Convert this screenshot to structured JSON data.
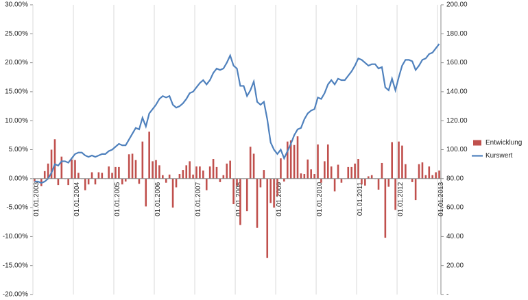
{
  "chart_data": {
    "type": "bar_line",
    "categories": [
      "01.01.2003",
      null,
      null,
      null,
      null,
      null,
      null,
      null,
      null,
      null,
      null,
      null,
      "01.01.2004",
      null,
      null,
      null,
      null,
      null,
      null,
      null,
      null,
      null,
      null,
      null,
      "01.01.2005",
      null,
      null,
      null,
      null,
      null,
      null,
      null,
      null,
      null,
      null,
      null,
      "01.01.2006",
      null,
      null,
      null,
      null,
      null,
      null,
      null,
      null,
      null,
      null,
      null,
      "01.01.2007",
      null,
      null,
      null,
      null,
      null,
      null,
      null,
      null,
      null,
      null,
      null,
      "01.01.2008",
      null,
      null,
      null,
      null,
      null,
      null,
      null,
      null,
      null,
      null,
      null,
      "01.01.2009",
      null,
      null,
      null,
      null,
      null,
      null,
      null,
      null,
      null,
      null,
      null,
      "01.01.2010",
      null,
      null,
      null,
      null,
      null,
      null,
      null,
      null,
      null,
      null,
      null,
      "01.01.2011",
      null,
      null,
      null,
      null,
      null,
      null,
      null,
      null,
      null,
      null,
      null,
      "01.01.2012",
      null,
      null,
      null,
      null,
      null,
      null,
      null,
      null,
      null,
      null,
      null,
      "01.01.2013"
    ],
    "series": [
      {
        "name": "Entwicklung",
        "type": "bar",
        "color": "#c0504d",
        "values": [
          -0.5,
          0,
          -1.3,
          1.3,
          2.6,
          5.0,
          6.8,
          -1.1,
          3.8,
          0,
          -1.1,
          3.3,
          3.2,
          1.0,
          0,
          -2.0,
          -1.0,
          1.1,
          -1.0,
          1.1,
          1.0,
          0,
          2.1,
          1.0,
          2.0,
          2.0,
          -1.0,
          -0.5,
          4.2,
          4.3,
          3.2,
          -0.9,
          6.4,
          -4.8,
          8.1,
          3.0,
          3.2,
          2.3,
          0.6,
          -0.7,
          0.7,
          -5.0,
          -1.5,
          0.8,
          1.5,
          2.3,
          3.0,
          0.7,
          2.1,
          2.1,
          1.4,
          -2.0,
          2.1,
          3.4,
          2.0,
          -0.6,
          0.6,
          2.6,
          3.1,
          -4.4,
          -1.3,
          -8.0,
          0,
          -5.6,
          5.5,
          4.3,
          -8.5,
          -1.5,
          1.5,
          -13.7,
          -4.2,
          -5.0,
          -3.0,
          3.5,
          -0.5,
          6.4,
          6.6,
          5.8,
          7.3,
          0.9,
          0.8,
          3.3,
          1.6,
          0.8,
          5.9,
          -0.7,
          3.0,
          5.9,
          2.1,
          -2.2,
          2.4,
          -0.7,
          0,
          2.0,
          2.0,
          2.6,
          3.4,
          -1.0,
          -1.2,
          0.4,
          0.6,
          0,
          -1.9,
          2.7,
          -10.2,
          -1.4,
          6.3,
          -5.4,
          6.4,
          5.7,
          2.5,
          0,
          -0.6,
          -3.7,
          2.5,
          2.8,
          0.6,
          2.1,
          0.6,
          1.1,
          1.4
        ]
      },
      {
        "name": "Kurswert",
        "type": "line",
        "axis": "y2",
        "color": "#4f81bd",
        "values": [
          78,
          78,
          77,
          78,
          80,
          84,
          90,
          89,
          92,
          92,
          91,
          94,
          97,
          98,
          98,
          96,
          95,
          96,
          95,
          96,
          97,
          97,
          99,
          100,
          102,
          104,
          103,
          103,
          107,
          111,
          115,
          114,
          122,
          116,
          125,
          128,
          131,
          135,
          137,
          136,
          137,
          131,
          129,
          130,
          132,
          135,
          139,
          140,
          143,
          146,
          148,
          145,
          148,
          153,
          156,
          155,
          156,
          160,
          165,
          158,
          156,
          144,
          144,
          137,
          141,
          147,
          133,
          131,
          133,
          121,
          105,
          100,
          97,
          100,
          94,
          99,
          104,
          110,
          114,
          115,
          121,
          125,
          127,
          128,
          136,
          135,
          139,
          145,
          148,
          145,
          149,
          148,
          148,
          151,
          154,
          158,
          163,
          162,
          160,
          158,
          159,
          159,
          156,
          157,
          143,
          141,
          149,
          141,
          150,
          158,
          162,
          162,
          161,
          155,
          158,
          162,
          163,
          166,
          167,
          170,
          173
        ]
      }
    ],
    "ylim": [
      -20,
      30
    ],
    "yticks": [
      {
        "value": -20,
        "label": "-20.00%"
      },
      {
        "value": -15,
        "label": "-15.00%"
      },
      {
        "value": -10,
        "label": "-10.00%"
      },
      {
        "value": -5,
        "label": "-5.00%"
      },
      {
        "value": 0,
        "label": "0.00%"
      },
      {
        "value": 5,
        "label": "5.00%"
      },
      {
        "value": 10,
        "label": "10.00%"
      },
      {
        "value": 15,
        "label": "15.00%"
      },
      {
        "value": 20,
        "label": "20.00%"
      },
      {
        "value": 25,
        "label": "25.00%"
      },
      {
        "value": 30,
        "label": "30.00%"
      }
    ],
    "y2lim": [
      0,
      200
    ],
    "y2ticks": [
      {
        "value": 0,
        "label": "-"
      },
      {
        "value": 20,
        "label": "20.00"
      },
      {
        "value": 40,
        "label": "40.00"
      },
      {
        "value": 60,
        "label": "60.00"
      },
      {
        "value": 80,
        "label": "80.00"
      },
      {
        "value": 100,
        "label": "100.00"
      },
      {
        "value": 120,
        "label": "120.00"
      },
      {
        "value": 140,
        "label": "140.00"
      },
      {
        "value": 160,
        "label": "160.00"
      },
      {
        "value": 180,
        "label": "180.00"
      },
      {
        "value": 200,
        "label": "200.00"
      }
    ],
    "legend": "right"
  }
}
